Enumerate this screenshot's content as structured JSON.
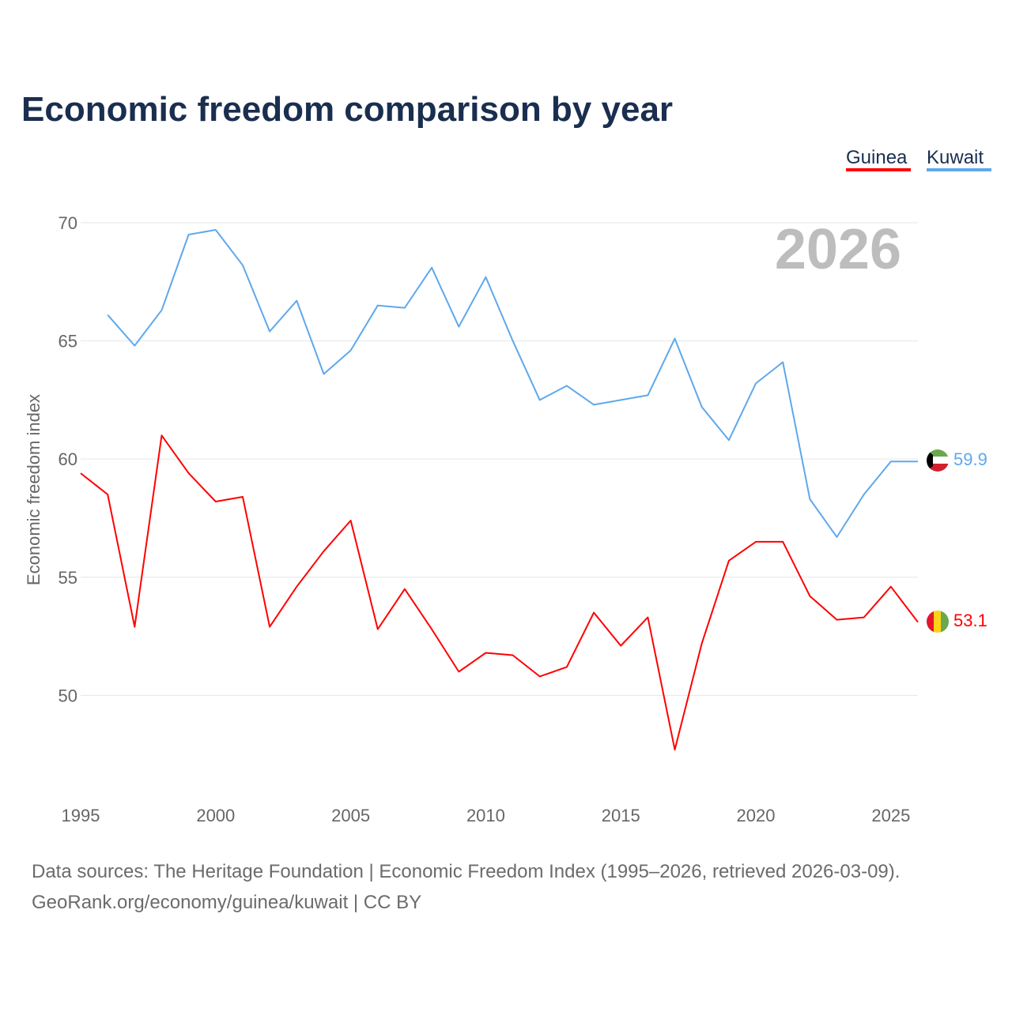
{
  "chart_data": {
    "type": "line",
    "title": "Economic freedom comparison by year",
    "ylabel": "Economic freedom index",
    "xlabel": "",
    "xlim": [
      1995,
      2026
    ],
    "ylim": [
      46,
      70
    ],
    "x_ticks": [
      1995,
      2000,
      2005,
      2010,
      2015,
      2020,
      2025
    ],
    "y_ticks": [
      50,
      55,
      60,
      65,
      70
    ],
    "grid": true,
    "legend_placement": "top-right",
    "year_watermark": "2026",
    "series": [
      {
        "name": "Guinea",
        "color": "#ff0000",
        "end_label": "53.1",
        "flag": "guinea-flag",
        "x": [
          1995,
          1996,
          1997,
          1998,
          1999,
          2000,
          2001,
          2002,
          2003,
          2004,
          2005,
          2006,
          2007,
          2008,
          2009,
          2010,
          2011,
          2012,
          2013,
          2014,
          2015,
          2016,
          2017,
          2018,
          2019,
          2020,
          2021,
          2022,
          2023,
          2024,
          2025,
          2026
        ],
        "values": [
          59.4,
          58.5,
          52.9,
          61.0,
          59.4,
          58.2,
          58.4,
          52.9,
          54.6,
          56.1,
          57.4,
          52.8,
          54.5,
          52.8,
          51.0,
          51.8,
          51.7,
          50.8,
          51.2,
          53.5,
          52.1,
          53.3,
          47.7,
          52.2,
          55.7,
          56.5,
          56.5,
          54.2,
          53.2,
          53.3,
          54.6,
          53.1
        ]
      },
      {
        "name": "Kuwait",
        "color": "#5ea8ec",
        "end_label": "59.9",
        "flag": "kuwait-flag",
        "x": [
          1996,
          1997,
          1998,
          1999,
          2000,
          2001,
          2002,
          2003,
          2004,
          2005,
          2006,
          2007,
          2008,
          2009,
          2010,
          2011,
          2012,
          2013,
          2014,
          2015,
          2016,
          2017,
          2018,
          2019,
          2020,
          2021,
          2022,
          2023,
          2024,
          2025,
          2026
        ],
        "values": [
          66.1,
          64.8,
          66.3,
          69.5,
          69.7,
          68.2,
          65.4,
          66.7,
          63.6,
          64.6,
          66.5,
          66.4,
          68.1,
          65.6,
          67.7,
          65.0,
          62.5,
          63.1,
          62.3,
          62.5,
          62.7,
          65.1,
          62.2,
          60.8,
          63.2,
          64.1,
          58.3,
          56.7,
          58.5,
          59.9,
          59.9
        ]
      }
    ],
    "source_line1": "Data sources: The Heritage Foundation | Economic Freedom Index (1995–2026, retrieved 2026-03-09).",
    "source_line2": "GeoRank.org/economy/guinea/kuwait | CC BY"
  }
}
